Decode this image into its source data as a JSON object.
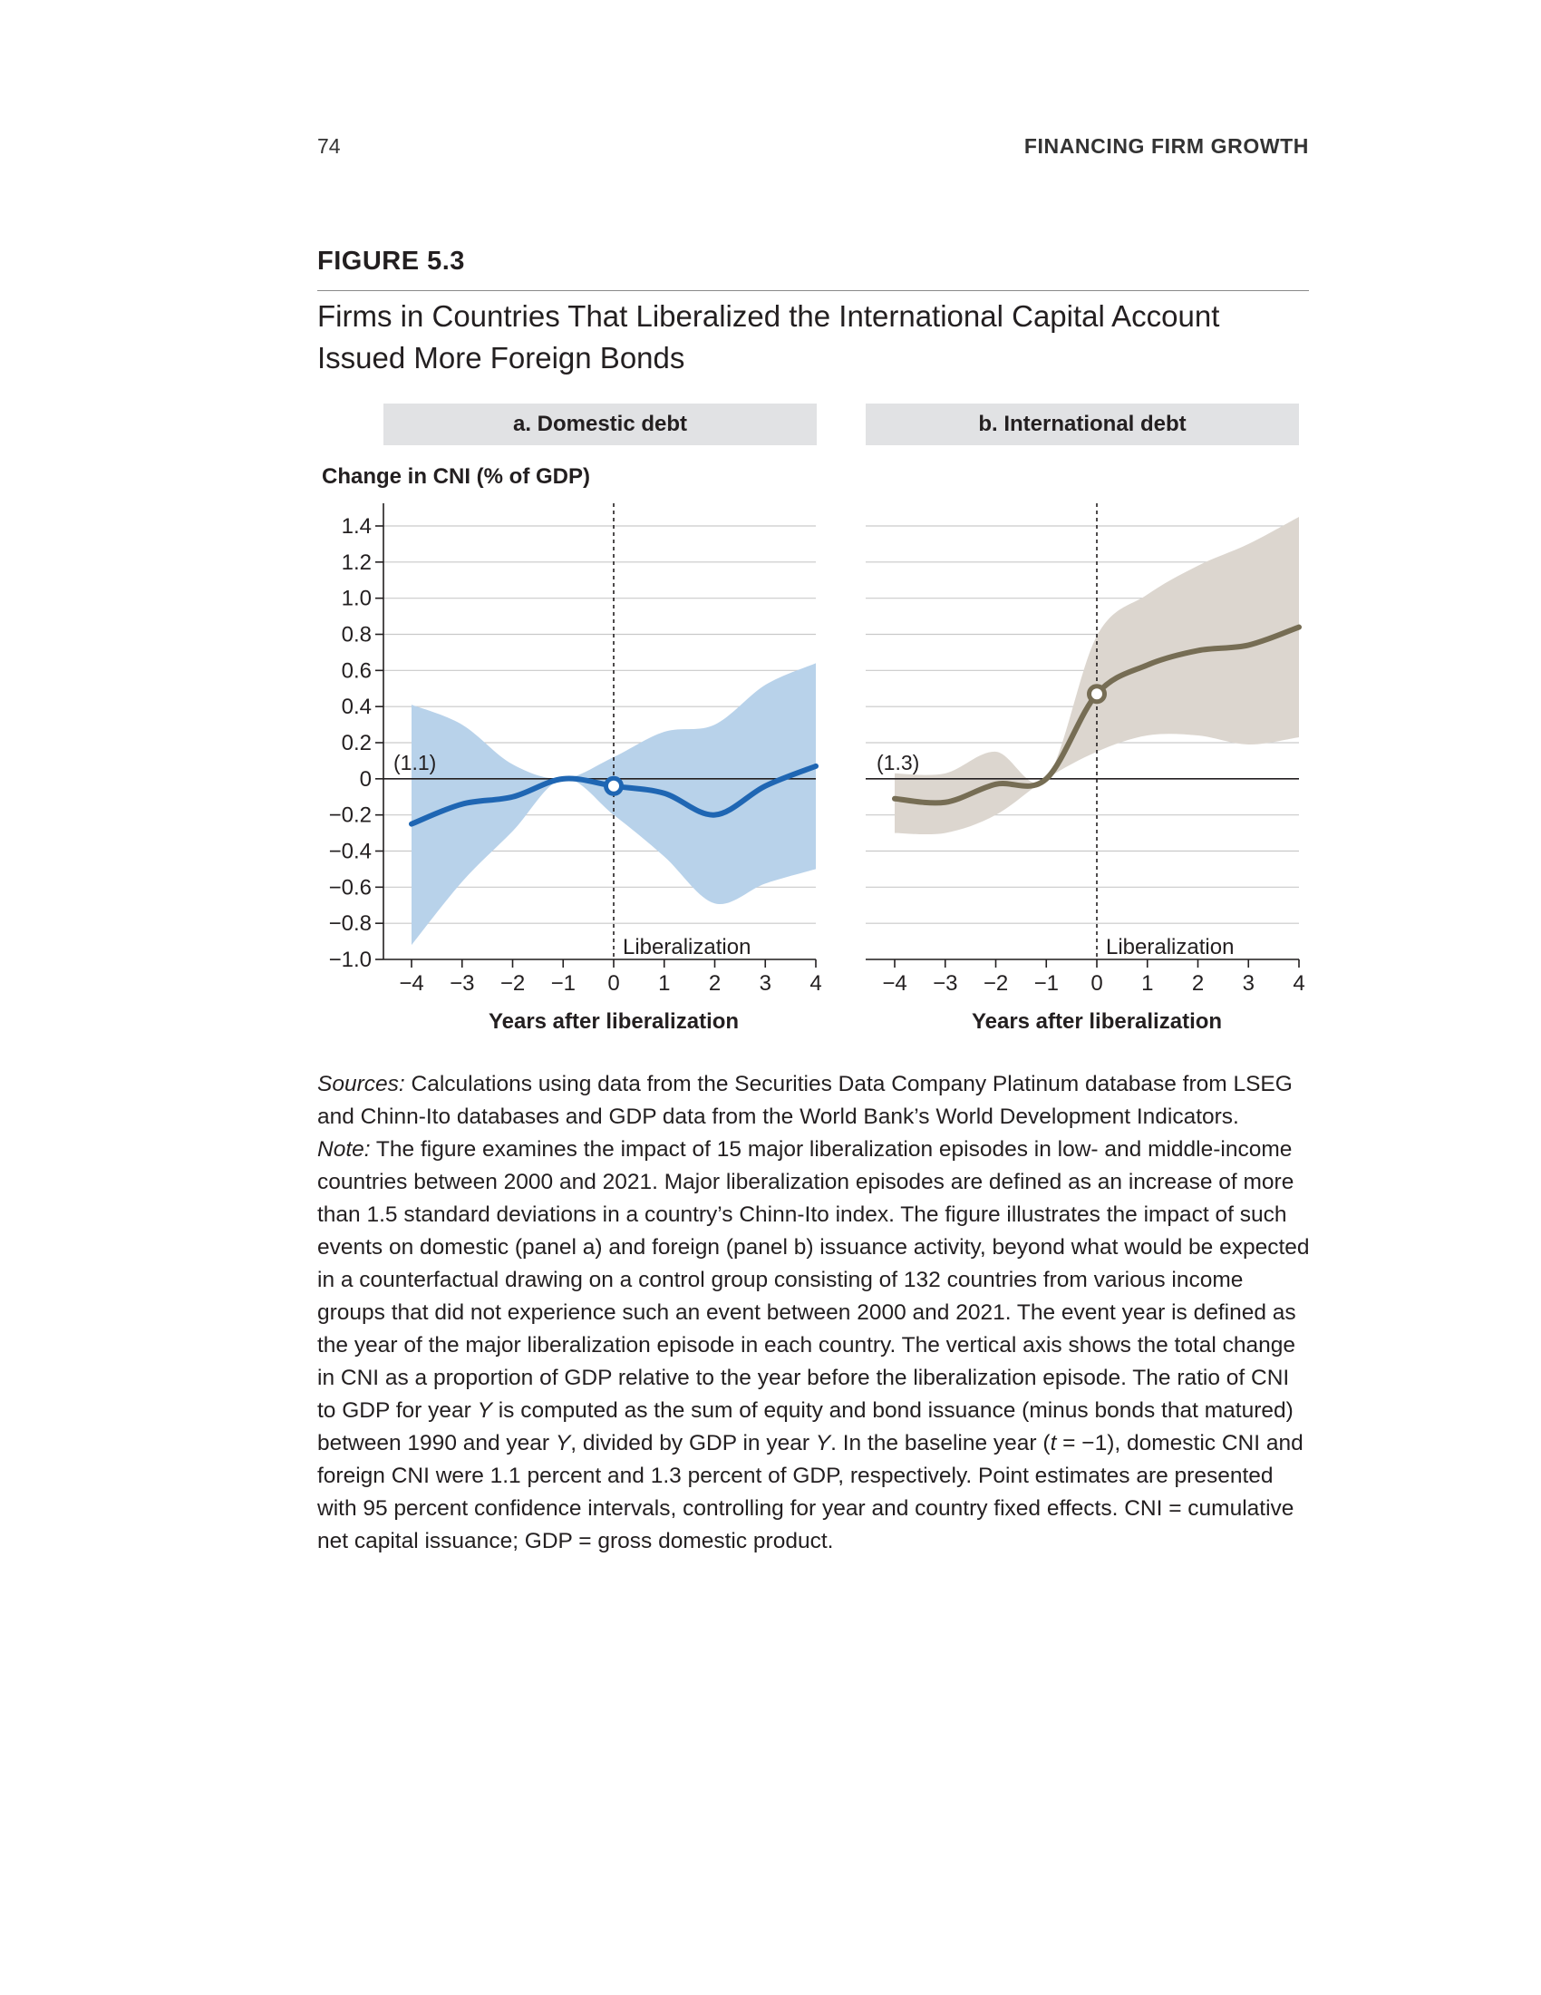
{
  "page": {
    "page_number": "74",
    "running_head": "FINANCING FIRM GROWTH"
  },
  "figure": {
    "label": "FIGURE 5.3",
    "title": "Firms in Countries That Liberalized the International Capital Account Issued More Foreign Bonds",
    "y_axis_title": "Change in CNI (% of GDP)"
  },
  "chart_data": [
    {
      "type": "line",
      "panel_title": "a. Domestic debt",
      "xlabel": "Years after liberalization",
      "ylabel": "Change in CNI (% of GDP)",
      "xlim": [
        -4,
        4
      ],
      "ylim": [
        -1.0,
        1.4
      ],
      "x_ticks": [
        -4,
        -3,
        -2,
        -1,
        0,
        1,
        2,
        3,
        4
      ],
      "x_tick_labels": [
        "−4",
        "−3",
        "−2",
        "−1",
        "0",
        "1",
        "2",
        "3",
        "4"
      ],
      "y_ticks": [
        -1.0,
        -0.8,
        -0.6,
        -0.4,
        -0.2,
        0,
        0.2,
        0.4,
        0.6,
        0.8,
        1.0,
        1.2,
        1.4
      ],
      "y_tick_labels": [
        "−1.0",
        "−0.8",
        "−0.6",
        "−0.4",
        "−0.2",
        "0",
        "0.2",
        "0.4",
        "0.6",
        "0.8",
        "1.0",
        "1.2",
        "1.4"
      ],
      "show_y_tick_labels": true,
      "grid": true,
      "baseline_label": "(1.1)",
      "event_x": 0,
      "event_label": "Liberalization",
      "series": [
        {
          "x": [
            -4,
            -3,
            -2,
            -1,
            0,
            1,
            2,
            3,
            4
          ],
          "values": [
            -0.25,
            -0.14,
            -0.1,
            0.0,
            -0.04,
            -0.08,
            -0.2,
            -0.04,
            0.07
          ],
          "lower": [
            -0.92,
            -0.57,
            -0.29,
            0.0,
            -0.2,
            -0.43,
            -0.69,
            -0.58,
            -0.5
          ],
          "upper": [
            0.41,
            0.3,
            0.08,
            0.0,
            0.12,
            0.26,
            0.3,
            0.52,
            0.64
          ],
          "color": "#1f66b3",
          "band_color": "#b8d2ea"
        }
      ],
      "marker_x": 0
    },
    {
      "type": "line",
      "panel_title": "b. International debt",
      "xlabel": "Years after liberalization",
      "ylabel": "",
      "xlim": [
        -4,
        4
      ],
      "ylim": [
        -1.0,
        1.4
      ],
      "x_ticks": [
        -4,
        -3,
        -2,
        -1,
        0,
        1,
        2,
        3,
        4
      ],
      "x_tick_labels": [
        "−4",
        "−3",
        "−2",
        "−1",
        "0",
        "1",
        "2",
        "3",
        "4"
      ],
      "y_ticks": [
        -1.0,
        -0.8,
        -0.6,
        -0.4,
        -0.2,
        0,
        0.2,
        0.4,
        0.6,
        0.8,
        1.0,
        1.2,
        1.4
      ],
      "show_y_tick_labels": false,
      "grid": true,
      "baseline_label": "(1.3)",
      "event_x": 0,
      "event_label": "Liberalization",
      "series": [
        {
          "x": [
            -4,
            -3,
            -2,
            -1,
            0,
            1,
            2,
            3,
            4
          ],
          "values": [
            -0.11,
            -0.13,
            -0.03,
            0.0,
            0.47,
            0.63,
            0.71,
            0.74,
            0.84
          ],
          "lower": [
            -0.3,
            -0.3,
            -0.2,
            0.0,
            0.15,
            0.24,
            0.24,
            0.19,
            0.23
          ],
          "upper": [
            0.03,
            0.03,
            0.15,
            0.0,
            0.79,
            1.02,
            1.18,
            1.3,
            1.45
          ],
          "color": "#766d54",
          "band_color": "#dcd6cf"
        }
      ],
      "marker_x": 0
    }
  ],
  "notes": {
    "sources_label": "Sources:",
    "sources_text": " Calculations using data from the Securities Data Company Platinum database from LSEG and Chinn-Ito databases and GDP data from the World Bank’s World Development Indicators.",
    "note_label": "Note:",
    "note_part1": " The figure examines the impact of 15 major liberalization episodes in low- and middle-income countries between 2000 and 2021. Major liberalization episodes are defined as an increase of more than 1.5 standard deviations in a country’s Chinn-Ito index. The figure illustrates the impact of such events on domestic (panel a) and foreign (panel b) issuance activity, beyond what would be expected in a counterfactual drawing on a control group consisting of 132 countries from various income groups that did not experience such an event between 2000 and 2021. The event year is defined as the year of the major liberalization episode in each country. The vertical axis shows the total change in CNI as a proportion of GDP relative to the year before the liberalization episode. The ratio of CNI to GDP for year ",
    "var_y1": "Y",
    "note_part2": " is computed as the sum of equity and bond issuance (minus bonds that matured) between 1990 and year ",
    "var_y2": "Y",
    "note_part3": ", divided by GDP in year ",
    "var_y3": "Y",
    "note_part4": ". In the baseline year (",
    "var_t": "t",
    "note_part5": " = −1), domestic CNI and foreign CNI were 1.1 percent and 1.3 percent of GDP, respectively. Point estimates are presented with 95 percent confidence intervals, controlling for year and country fixed effects. CNI = cumulative net capital issuance; GDP = gross domestic product."
  }
}
